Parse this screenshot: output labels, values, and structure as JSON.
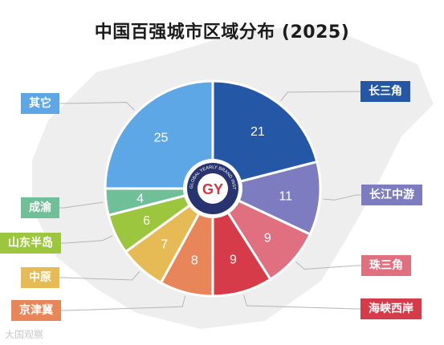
{
  "title": "中国百强城市区域分布 (2025)",
  "logo": {
    "text": "GY",
    "ring_text": "GLOBAL YEARLY BRAND INSTITUTE"
  },
  "watermark": "大国观察",
  "chart_data": {
    "type": "pie",
    "title": "中国百强城市区域分布 (2025)",
    "slices": [
      {
        "label": "长三角",
        "value": 21,
        "color": "#2457a6",
        "label_color": "#ffffff"
      },
      {
        "label": "长江中游",
        "value": 11,
        "color": "#7e7cc0",
        "label_color": "#ffffff"
      },
      {
        "label": "珠三角",
        "value": 9,
        "color": "#e0707f",
        "label_color": "#ffffff"
      },
      {
        "label": "海峡西岸",
        "value": 9,
        "color": "#d63b4a",
        "label_color": "#ffffff"
      },
      {
        "label": "京津冀",
        "value": 8,
        "color": "#e8865a",
        "label_color": "#ffffff"
      },
      {
        "label": "中原",
        "value": 7,
        "color": "#e6bb55",
        "label_color": "#ffffff"
      },
      {
        "label": "山东半岛",
        "value": 6,
        "color": "#9bc63e",
        "label_color": "#ffffff"
      },
      {
        "label": "成渝",
        "value": 4,
        "color": "#6fbf98",
        "label_color": "#ffffff"
      },
      {
        "label": "其它",
        "value": 25,
        "color": "#5ea7e6",
        "label_color": "#ffffff"
      }
    ]
  }
}
